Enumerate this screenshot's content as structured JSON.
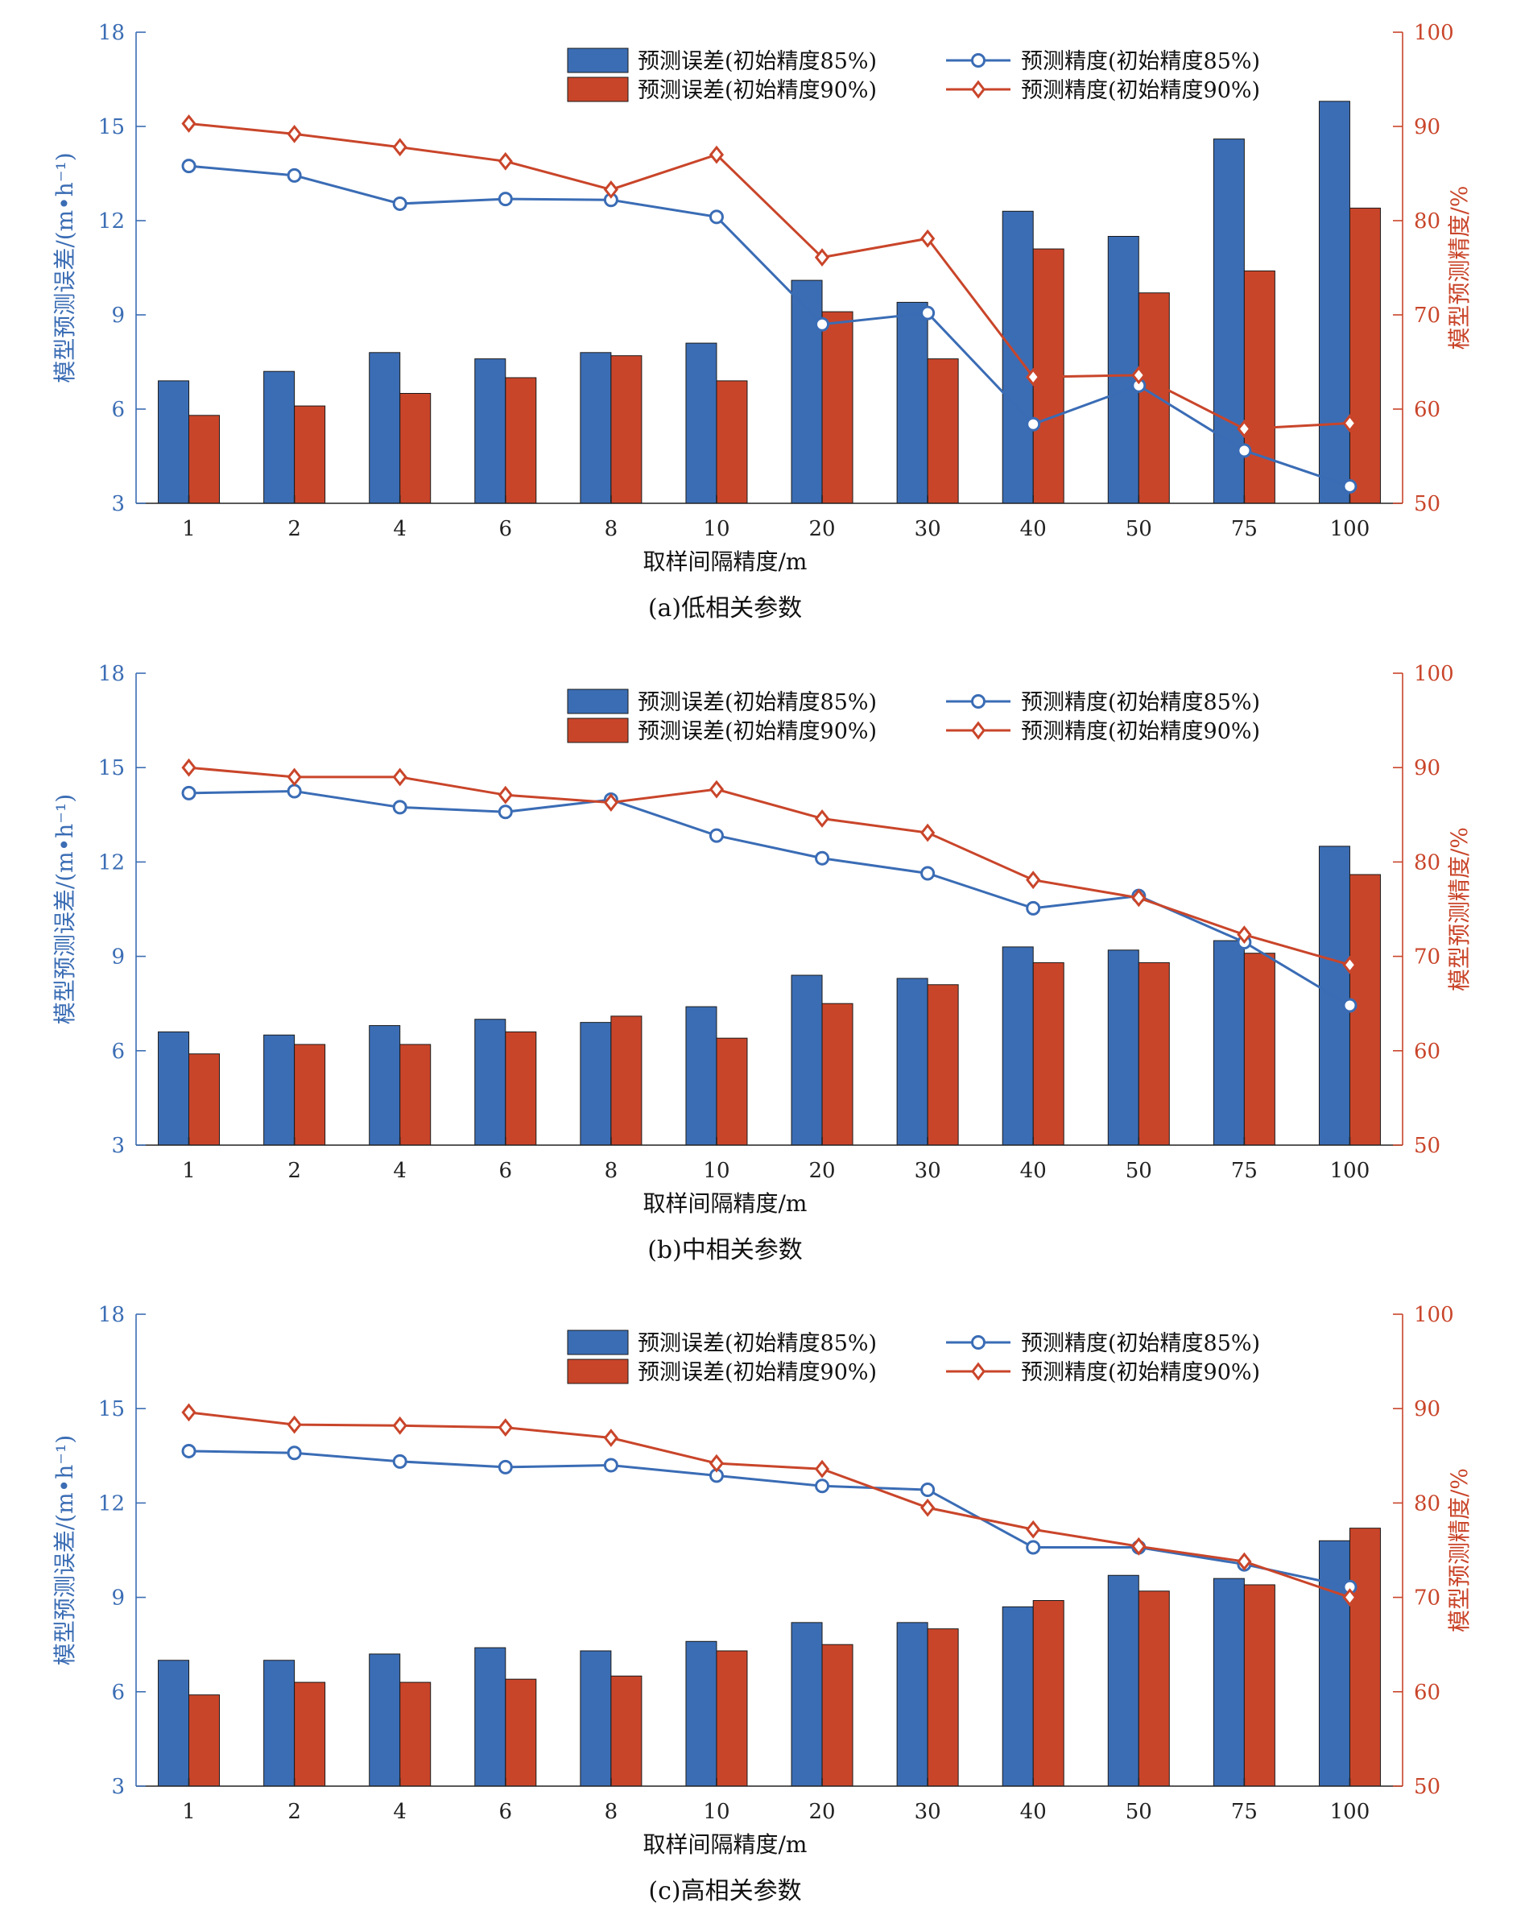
{
  "colors": {
    "bar85": "#3b6db4",
    "bar90": "#c9452a",
    "line85": "#3a6cb5",
    "line90": "#c9452a",
    "leftAxis": "#3b6db4",
    "rightAxis": "#c9452a"
  },
  "legend": {
    "bar85": "预测误差(初始精度85%)",
    "bar90": "预测误差(初始精度90%)",
    "line85": "预测精度(初始精度85%)",
    "line90": "预测精度(初始精度90%)"
  },
  "chart_data": [
    {
      "type": "bar",
      "caption": "(a)低相关参数",
      "xlabel": "取样间隔精度/m",
      "ylabel_left": "模型预测误差/(m•h⁻¹)",
      "ylabel_right": "模型预测精度/%",
      "categories": [
        "1",
        "2",
        "4",
        "6",
        "8",
        "10",
        "20",
        "30",
        "40",
        "50",
        "75",
        "100"
      ],
      "ylim_left": [
        3,
        18
      ],
      "yticks_left": [
        3,
        6,
        9,
        12,
        15,
        18
      ],
      "ylim_right": [
        50,
        100
      ],
      "yticks_right": [
        50,
        60,
        70,
        80,
        90,
        100
      ],
      "series": [
        {
          "name": "预测误差(初始精度85%)",
          "type": "bar",
          "axis": "left",
          "values": [
            6.9,
            7.2,
            7.8,
            7.6,
            7.8,
            8.1,
            10.1,
            9.4,
            12.3,
            11.5,
            14.6,
            15.8
          ]
        },
        {
          "name": "预测误差(初始精度90%)",
          "type": "bar",
          "axis": "left",
          "values": [
            5.8,
            6.1,
            6.5,
            7.0,
            7.7,
            6.9,
            9.1,
            7.6,
            11.1,
            9.7,
            10.4,
            12.4
          ]
        },
        {
          "name": "预测精度(初始精度85%)",
          "type": "line",
          "axis": "right",
          "marker": "circle",
          "values": [
            85.8,
            84.8,
            81.8,
            82.3,
            82.2,
            80.4,
            69.0,
            70.2,
            58.4,
            62.5,
            55.6,
            51.8
          ]
        },
        {
          "name": "预测精度(初始精度90%)",
          "type": "line",
          "axis": "right",
          "marker": "diamond",
          "values": [
            90.3,
            89.2,
            87.8,
            86.3,
            83.3,
            87.0,
            76.1,
            78.1,
            63.4,
            63.6,
            57.9,
            58.5
          ]
        }
      ]
    },
    {
      "type": "bar",
      "caption": "(b)中相关参数",
      "xlabel": "取样间隔精度/m",
      "ylabel_left": "模型预测误差/(m•h⁻¹)",
      "ylabel_right": "模型预测精度/%",
      "categories": [
        "1",
        "2",
        "4",
        "6",
        "8",
        "10",
        "20",
        "30",
        "40",
        "50",
        "75",
        "100"
      ],
      "ylim_left": [
        3,
        18
      ],
      "yticks_left": [
        3,
        6,
        9,
        12,
        15,
        18
      ],
      "ylim_right": [
        50,
        100
      ],
      "yticks_right": [
        50,
        60,
        70,
        80,
        90,
        100
      ],
      "series": [
        {
          "name": "预测误差(初始精度85%)",
          "type": "bar",
          "axis": "left",
          "values": [
            6.6,
            6.5,
            6.8,
            7.0,
            6.9,
            7.4,
            8.4,
            8.3,
            9.3,
            9.2,
            9.5,
            12.5
          ]
        },
        {
          "name": "预测误差(初始精度90%)",
          "type": "bar",
          "axis": "left",
          "values": [
            5.9,
            6.2,
            6.2,
            6.6,
            7.1,
            6.4,
            7.5,
            8.1,
            8.8,
            8.8,
            9.1,
            11.6
          ]
        },
        {
          "name": "预测精度(初始精度85%)",
          "type": "line",
          "axis": "right",
          "marker": "circle",
          "values": [
            87.3,
            87.5,
            85.8,
            85.3,
            86.6,
            82.8,
            80.4,
            78.8,
            75.1,
            76.4,
            71.5,
            64.8
          ]
        },
        {
          "name": "预测精度(初始精度90%)",
          "type": "line",
          "axis": "right",
          "marker": "diamond",
          "values": [
            90.0,
            89.0,
            89.0,
            87.1,
            86.3,
            87.7,
            84.6,
            83.1,
            78.1,
            76.2,
            72.3,
            69.1
          ]
        }
      ]
    },
    {
      "type": "bar",
      "caption": "(c)高相关参数",
      "xlabel": "取样间隔精度/m",
      "ylabel_left": "模型预测误差/(m•h⁻¹)",
      "ylabel_right": "模型预测精度/%",
      "categories": [
        "1",
        "2",
        "4",
        "6",
        "8",
        "10",
        "20",
        "30",
        "40",
        "50",
        "75",
        "100"
      ],
      "ylim_left": [
        3,
        18
      ],
      "yticks_left": [
        3,
        6,
        9,
        12,
        15,
        18
      ],
      "ylim_right": [
        50,
        100
      ],
      "yticks_right": [
        50,
        60,
        70,
        80,
        90,
        100
      ],
      "series": [
        {
          "name": "预测误差(初始精度85%)",
          "type": "bar",
          "axis": "left",
          "values": [
            7.0,
            7.0,
            7.2,
            7.4,
            7.3,
            7.6,
            8.2,
            8.2,
            8.7,
            9.7,
            9.6,
            10.8
          ]
        },
        {
          "name": "预测误差(初始精度90%)",
          "type": "bar",
          "axis": "left",
          "values": [
            5.9,
            6.3,
            6.3,
            6.4,
            6.5,
            7.3,
            7.5,
            8.0,
            8.9,
            9.2,
            9.4,
            11.2
          ]
        },
        {
          "name": "预测精度(初始精度85%)",
          "type": "line",
          "axis": "right",
          "marker": "circle",
          "values": [
            85.5,
            85.3,
            84.4,
            83.8,
            84.0,
            82.9,
            81.8,
            81.4,
            75.3,
            75.3,
            73.5,
            71.1
          ]
        },
        {
          "name": "预测精度(初始精度90%)",
          "type": "line",
          "axis": "right",
          "marker": "diamond",
          "values": [
            89.6,
            88.3,
            88.2,
            88.0,
            86.9,
            84.2,
            83.6,
            79.5,
            77.2,
            75.4,
            73.8,
            70.0
          ]
        }
      ]
    }
  ]
}
